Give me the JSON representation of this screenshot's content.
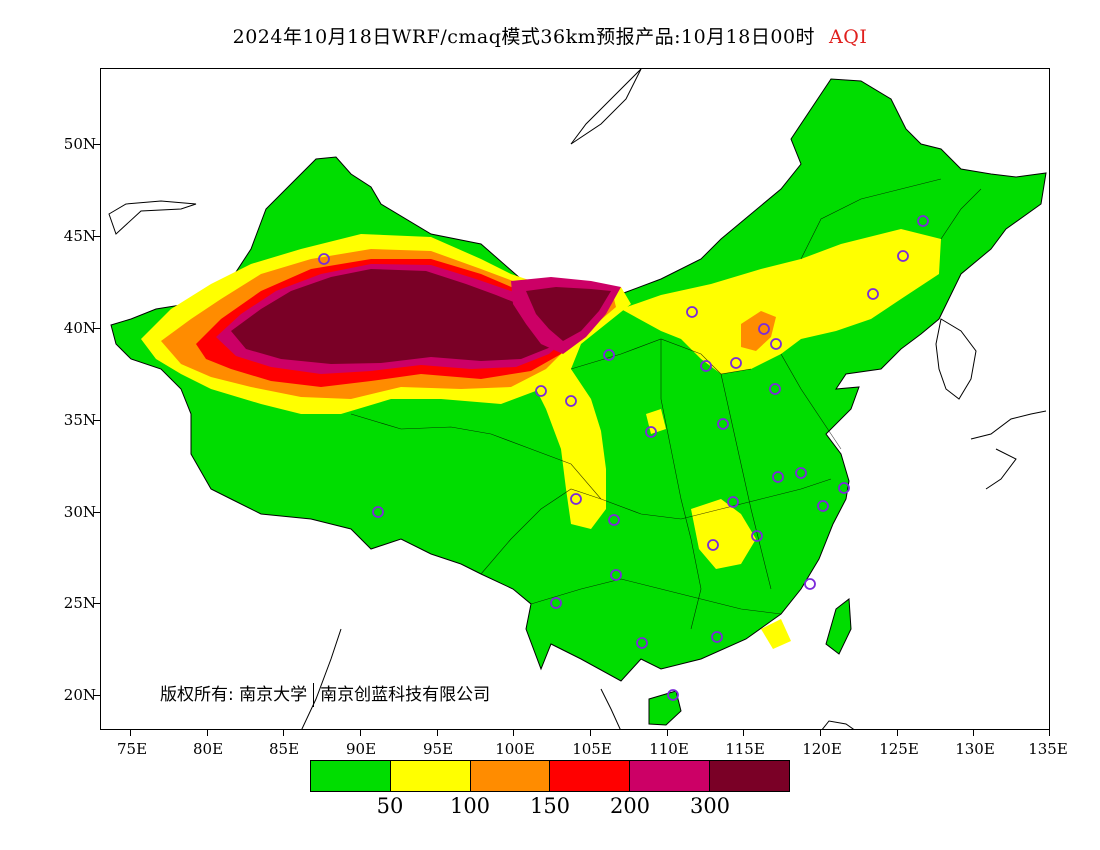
{
  "title": {
    "text": "2024年10月18日WRF/cmaq模式36km预报产品:10月18日00时",
    "quantity": "AQI"
  },
  "axes": {
    "lat_labels": [
      "50N",
      "45N",
      "40N",
      "35N",
      "30N",
      "25N",
      "20N"
    ],
    "lon_labels": [
      "75E",
      "80E",
      "85E",
      "90E",
      "95E",
      "100E",
      "105E",
      "110E",
      "115E",
      "120E",
      "125E",
      "130E",
      "135E"
    ],
    "lon_range": [
      73,
      135
    ],
    "lat_range": [
      18,
      54
    ]
  },
  "copyright": {
    "owner_label": "版权所有: 南京大学",
    "company": "南京创蓝科技有限公司"
  },
  "legend": {
    "colors": [
      "#00dd00",
      "#ffff00",
      "#ff8c00",
      "#ff0000",
      "#cc0066",
      "#7a0026"
    ],
    "ticks": [
      "50",
      "100",
      "150",
      "200",
      "300"
    ]
  },
  "map_colors": {
    "good": "#00dd00",
    "moderate": "#ffff00",
    "usg": "#ff8c00",
    "unhealthy": "#ff0000",
    "very_unhealthy": "#cc0066",
    "hazardous": "#7a0026",
    "marker": "#7b2bd9"
  }
}
